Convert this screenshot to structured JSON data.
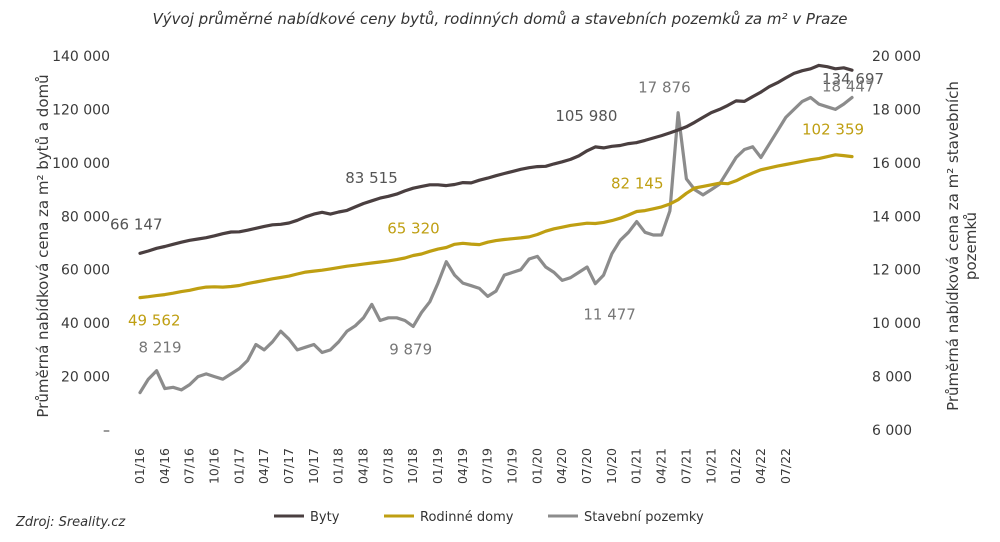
{
  "chart_data": {
    "type": "line",
    "title": "Vývoj průměrné nabídkové ceny bytů, rodinných domů a stavebních pozemků za m² v Praze",
    "ylabel": "Průměrná nabídková cena za m² bytů a domů",
    "y2label_line1": "Průměrná nabídková cena za m² stavebních",
    "y2label_line2": "pozemků",
    "source": "Zdroj: Sreality.cz",
    "ylim": [
      0,
      140000
    ],
    "y2lim": [
      6000,
      20000
    ],
    "yticks": [
      "–",
      "20 000",
      "40 000",
      "60 000",
      "80 000",
      "100 000",
      "120 000",
      "140 000"
    ],
    "y2ticks": [
      "6 000",
      "8 000",
      "10 000",
      "12 000",
      "14 000",
      "16 000",
      "18 000",
      "20 000"
    ],
    "xticks": [
      "01/16",
      "04/16",
      "07/16",
      "10/16",
      "01/17",
      "04/17",
      "07/17",
      "10/17",
      "01/18",
      "04/18",
      "07/18",
      "10/18",
      "01/19",
      "04/19",
      "07/19",
      "10/19",
      "01/20",
      "04/20",
      "07/20",
      "10/20",
      "01/21",
      "04/21",
      "07/21",
      "10/21",
      "01/22",
      "04/22",
      "07/22"
    ],
    "start_month": "01/16",
    "series": [
      {
        "name": "Byty",
        "axis": "left",
        "color": "#4a3f40",
        "values": [
          66147,
          67000,
          68000,
          68700,
          69500,
          70300,
          71000,
          71500,
          72000,
          72700,
          73500,
          74100,
          74200,
          74800,
          75500,
          76200,
          76800,
          77000,
          77500,
          78500,
          79800,
          80800,
          81500,
          80800,
          81600,
          82200,
          83515,
          84800,
          85800,
          86800,
          87500,
          88300,
          89500,
          90500,
          91200,
          91800,
          91800,
          91500,
          91900,
          92600,
          92500,
          93500,
          94300,
          95200,
          96000,
          96800,
          97600,
          98200,
          98600,
          98700,
          99600,
          100400,
          101300,
          102600,
          104500,
          105980,
          105600,
          106200,
          106500,
          107200,
          107600,
          108400,
          109300,
          110200,
          111200,
          112300,
          113500,
          115200,
          117000,
          118800,
          120000,
          121500,
          123200,
          123000,
          124800,
          126500,
          128500,
          130000,
          131800,
          133500,
          134500,
          135200,
          136500,
          136000,
          135200,
          135600,
          134697
        ]
      },
      {
        "name": "Rodinné domy",
        "axis": "left",
        "color": "#bf9f12",
        "values": [
          49562,
          49900,
          50300,
          50700,
          51200,
          51800,
          52300,
          53000,
          53500,
          53600,
          53500,
          53700,
          54100,
          54800,
          55400,
          56000,
          56600,
          57100,
          57600,
          58400,
          59100,
          59500,
          59800,
          60300,
          60800,
          61300,
          61700,
          62100,
          62500,
          62900,
          63300,
          63800,
          64400,
          65320,
          65900,
          66900,
          67700,
          68300,
          69500,
          69900,
          69600,
          69400,
          70300,
          70900,
          71300,
          71600,
          71900,
          72300,
          73200,
          74400,
          75300,
          75900,
          76600,
          77000,
          77400,
          77300,
          77700,
          78400,
          79300,
          80500,
          81800,
          82145,
          82800,
          83500,
          84600,
          86200,
          88600,
          90600,
          91200,
          91800,
          92400,
          92200,
          93300,
          94800,
          96200,
          97400,
          98100,
          98800,
          99400,
          100000,
          100600,
          101200,
          101600,
          102300,
          103000,
          102700,
          102359
        ]
      },
      {
        "name": "Stavební pozemky",
        "axis": "right",
        "color": "#8c8c8c",
        "values": [
          7400,
          7900,
          8219,
          7550,
          7600,
          7500,
          7700,
          8000,
          8100,
          8000,
          7900,
          8100,
          8300,
          8600,
          9200,
          9000,
          9300,
          9700,
          9400,
          9000,
          9100,
          9200,
          8900,
          9000,
          9300,
          9700,
          9900,
          10200,
          10700,
          10100,
          10200,
          10200,
          10100,
          9879,
          10400,
          10800,
          11500,
          12300,
          11800,
          11500,
          11400,
          11300,
          11000,
          11200,
          11800,
          11900,
          12000,
          12400,
          12500,
          12100,
          11900,
          11600,
          11700,
          11900,
          12100,
          11477,
          11800,
          12600,
          13100,
          13400,
          13800,
          13400,
          13300,
          13300,
          14200,
          17876,
          15400,
          15000,
          14800,
          15000,
          15200,
          15700,
          16200,
          16500,
          16600,
          16200,
          16700,
          17200,
          17700,
          18000,
          18300,
          18447,
          18200,
          18100,
          18000,
          18200,
          18447
        ]
      }
    ],
    "annotations": [
      {
        "text": "66 147",
        "series": 0,
        "index": 0,
        "dx": -30,
        "dy": -24,
        "color": "#555555"
      },
      {
        "text": "83 515",
        "series": 0,
        "index": 26,
        "dx": -10,
        "dy": -24,
        "color": "#555555"
      },
      {
        "text": "105 980",
        "series": 0,
        "index": 55,
        "dx": -40,
        "dy": -26,
        "color": "#555555"
      },
      {
        "text": "134 697",
        "series": 0,
        "index": 86,
        "dx": -30,
        "dy": 14,
        "color": "#555555"
      },
      {
        "text": "49 562",
        "series": 1,
        "index": 0,
        "dx": -12,
        "dy": 28,
        "color": "#bf9f12"
      },
      {
        "text": "65 320",
        "series": 1,
        "index": 33,
        "dx": -26,
        "dy": -22,
        "color": "#bf9f12"
      },
      {
        "text": "82 145",
        "series": 1,
        "index": 61,
        "dx": -34,
        "dy": -22,
        "color": "#bf9f12"
      },
      {
        "text": "102 359",
        "series": 1,
        "index": 86,
        "dx": -50,
        "dy": -22,
        "color": "#bf9f12"
      },
      {
        "text": "8 219",
        "series": 2,
        "index": 2,
        "dx": -18,
        "dy": -18,
        "color": "#777777"
      },
      {
        "text": "9 879",
        "series": 2,
        "index": 33,
        "dx": -24,
        "dy": 28,
        "color": "#777777"
      },
      {
        "text": "11 477",
        "series": 2,
        "index": 55,
        "dx": -12,
        "dy": 36,
        "color": "#777777"
      },
      {
        "text": "17 876",
        "series": 2,
        "index": 65,
        "dx": -40,
        "dy": -20,
        "color": "#777777"
      },
      {
        "text": "18 447",
        "series": 2,
        "index": 86,
        "dx": -30,
        "dy": -6,
        "color": "#777777"
      }
    ],
    "legend_position": "bottom"
  }
}
